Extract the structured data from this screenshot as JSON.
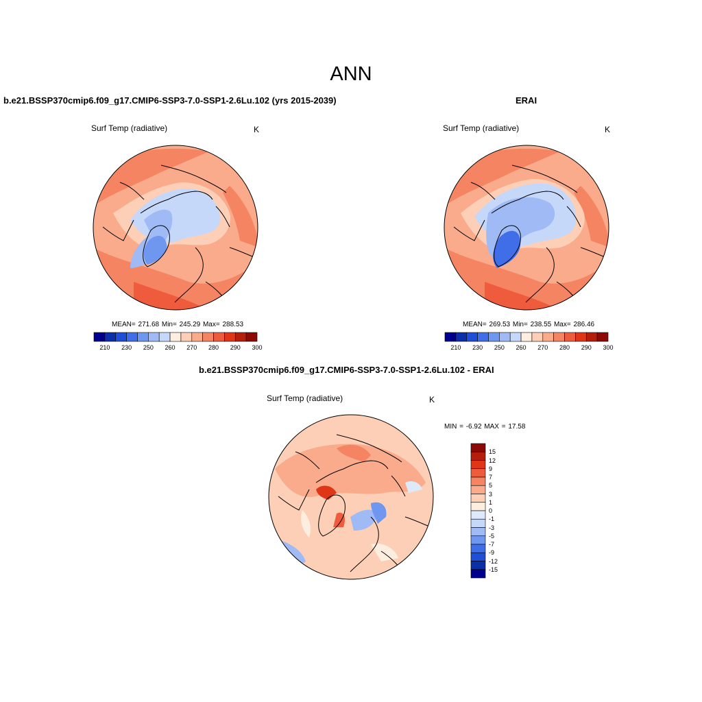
{
  "title": "ANN",
  "panels": {
    "model": {
      "title": "b.e21.BSSP370cmip6.f09_g17.CMIP6-SSP3-7.0-SSP1-2.6Lu.102 (yrs 2015-2039)",
      "variable": "Surf Temp (radiative)",
      "units": "K",
      "stats": "MEAN= 271.68  Min= 245.29  Max= 288.53"
    },
    "obs": {
      "title": "ERAI",
      "variable": "Surf Temp (radiative)",
      "units": "K",
      "stats": "MEAN= 269.53  Min= 238.55  Max= 286.46"
    },
    "diff": {
      "title": "b.e21.BSSP370cmip6.f09_g17.CMIP6-SSP3-7.0-SSP1-2.6Lu.102 - ERAI",
      "variable": "Surf Temp (radiative)",
      "units": "K",
      "stats": "MIN =  -6.92 MAX =  17.58"
    }
  },
  "abs_colorbar": {
    "tick_labels": [
      "210",
      "230",
      "250",
      "260",
      "270",
      "280",
      "290",
      "300"
    ],
    "colors": [
      "#00008f",
      "#0a2fa8",
      "#1f4fd6",
      "#3f6ee8",
      "#6f97f0",
      "#9fbaf5",
      "#c6d8fa",
      "#fdeee0",
      "#fccfb6",
      "#f9ab8c",
      "#f58463",
      "#ef5c3d",
      "#de3617",
      "#b51e0b",
      "#8b0a05"
    ]
  },
  "diff_colorbar": {
    "tick_labels": [
      "15",
      "12",
      "9",
      "7",
      "5",
      "3",
      "1",
      "0",
      "-1",
      "-3",
      "-5",
      "-7",
      "-9",
      "-12",
      "-15"
    ],
    "colors": [
      "#8b0a05",
      "#b51e0b",
      "#de3617",
      "#ef5c3d",
      "#f58463",
      "#f9ab8c",
      "#fccfb6",
      "#fdeee0",
      "#ddeafb",
      "#c6d8fa",
      "#9fbaf5",
      "#6f97f0",
      "#3f6ee8",
      "#1f4fd6",
      "#0a2fa8",
      "#00008f"
    ]
  }
}
